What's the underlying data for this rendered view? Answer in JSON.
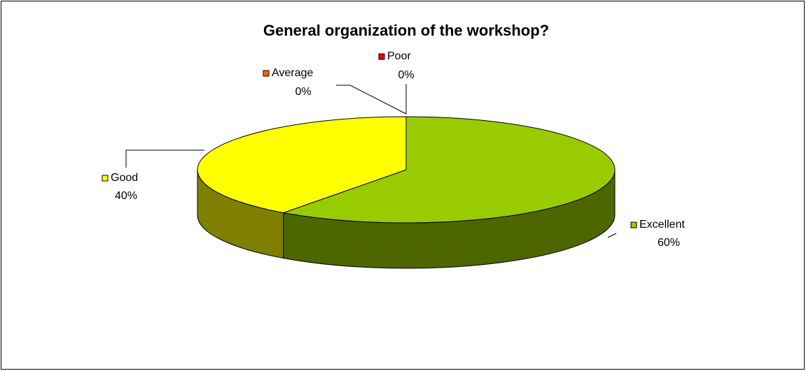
{
  "chart_data": {
    "type": "pie3d",
    "title": "General organization of the workshop?",
    "categories": [
      "Excellent",
      "Good",
      "Average",
      "Poor"
    ],
    "values": [
      60,
      40,
      0,
      0
    ],
    "value_labels": [
      "60%",
      "40%",
      "0%",
      "0%"
    ],
    "colors": [
      "#99cc00",
      "#ffff00",
      "#ff6600",
      "#ff0000"
    ]
  }
}
